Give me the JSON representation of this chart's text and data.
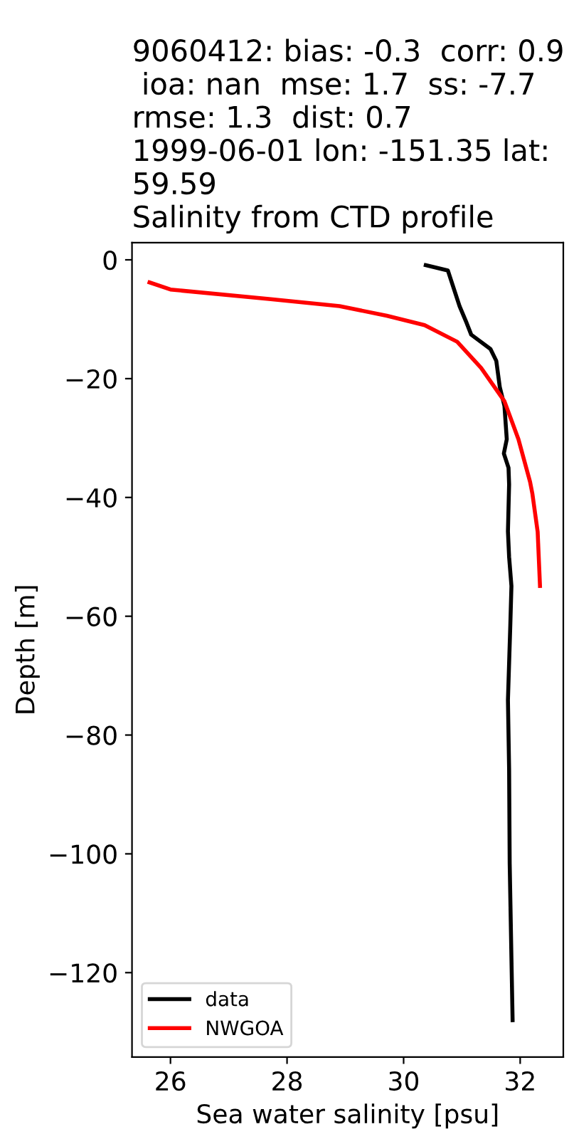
{
  "chart_data": {
    "type": "line",
    "title": "9060412: bias: -0.3  corr: 0.9  ioa: nan  mse: 1.7  ss: -7.7  rmse: 1.3  dist: 0.7 1999-06-01 lon: -151.35 lat: 59.59\nSalinity from CTD profile",
    "xlabel": "Sea water salinity [psu]",
    "ylabel": "Depth [m]",
    "series": [
      {
        "name": "data",
        "color": "#000000",
        "x": [
          30.38,
          30.76,
          30.96,
          31.08,
          31.16,
          31.49,
          31.59,
          31.65,
          31.73,
          31.77,
          31.72,
          31.8,
          31.81,
          31.79,
          31.81,
          31.85,
          31.83,
          31.79,
          31.81,
          31.82,
          31.85,
          31.87
        ],
        "values": [
          -0.9,
          -1.8,
          -7.8,
          -10.6,
          -12.6,
          -15.0,
          -17.0,
          -21.4,
          -24.6,
          -30.2,
          -32.6,
          -35.0,
          -37.8,
          -45.7,
          -50.0,
          -54.9,
          -61.7,
          -74.1,
          -85.7,
          -101.6,
          -117.6,
          -128.0
        ]
      },
      {
        "name": "NWGOA",
        "color": "#ff0000",
        "x": [
          25.64,
          26.0,
          27.69,
          28.9,
          29.71,
          30.36,
          30.92,
          31.33,
          31.73,
          31.97,
          32.17,
          32.21,
          32.3,
          32.34
        ],
        "values": [
          -3.8,
          -5.0,
          -6.6,
          -7.8,
          -9.4,
          -11.0,
          -13.8,
          -18.2,
          -23.8,
          -30.2,
          -37.4,
          -39.4,
          -45.8,
          -54.9
        ]
      }
    ],
    "xlim": [
      25.34,
      32.74
    ],
    "ylim": [
      -134.2,
      2.9
    ],
    "xticks": [
      26,
      28,
      30,
      32
    ],
    "yticks": [
      {
        "value": 0,
        "label": "0"
      },
      {
        "value": -20,
        "label": "−20"
      },
      {
        "value": -40,
        "label": "−40"
      },
      {
        "value": -60,
        "label": "−60"
      },
      {
        "value": -80,
        "label": "−80"
      },
      {
        "value": -100,
        "label": "−100"
      },
      {
        "value": -120,
        "label": "−120"
      }
    ],
    "legend": "bottom left",
    "grid": false,
    "marker": "none",
    "line_style": "solid"
  }
}
